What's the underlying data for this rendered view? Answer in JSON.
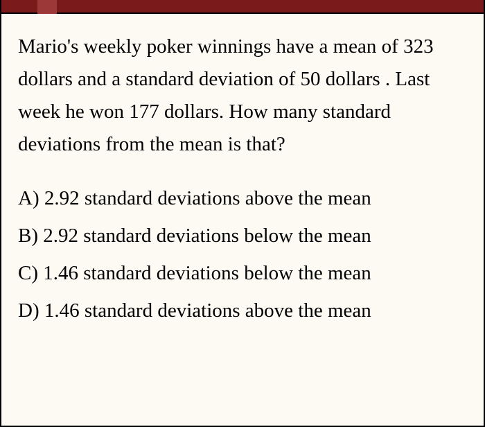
{
  "colors": {
    "background": "#fdfaf4",
    "top_bar": "#7a1a1a",
    "tab_marker": "#9d3838",
    "border": "#000000",
    "text": "#000000"
  },
  "typography": {
    "font_family": "Times New Roman",
    "question_fontsize": 29,
    "answer_fontsize": 29,
    "question_lineheight": 1.62
  },
  "question": {
    "text": "Mario's weekly poker winnings have a mean of 323 dollars and a standard deviation of 50 dollars . Last week he won 177 dollars. How many standard deviations from the mean is that?"
  },
  "answers": [
    {
      "label": "A) 2.92 standard deviations above the mean"
    },
    {
      "label": "B) 2.92 standard deviations below the mean"
    },
    {
      "label": "C) 1.46 standard deviations below the mean"
    },
    {
      "label": "D) 1.46 standard deviations above the mean"
    }
  ]
}
